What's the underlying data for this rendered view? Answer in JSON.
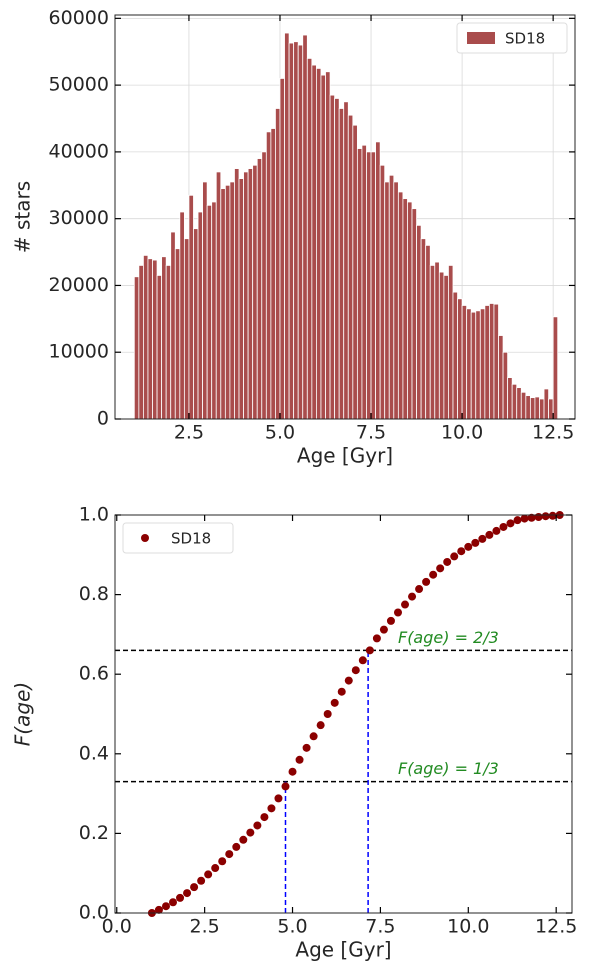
{
  "chart_data": [
    {
      "type": "histogram",
      "xlabel": "Age [Gyr]",
      "ylabel": "# stars",
      "bins": [
        1.0,
        1.125,
        1.25,
        1.375,
        1.5,
        1.625,
        1.75,
        1.875,
        2.0,
        2.125,
        2.25,
        2.375,
        2.5,
        2.625,
        2.75,
        2.875,
        3.0,
        3.125,
        3.25,
        3.375,
        3.5,
        3.625,
        3.75,
        3.875,
        4.0,
        4.125,
        4.25,
        4.375,
        4.5,
        4.625,
        4.75,
        4.875,
        5.0,
        5.125,
        5.25,
        5.375,
        5.5,
        5.625,
        5.75,
        5.875,
        6.0,
        6.125,
        6.25,
        6.375,
        6.5,
        6.625,
        6.75,
        6.875,
        7.0,
        7.125,
        7.25,
        7.375,
        7.5,
        7.625,
        7.75,
        7.875,
        8.0,
        8.125,
        8.25,
        8.375,
        8.5,
        8.625,
        8.75,
        8.875,
        9.0,
        9.125,
        9.25,
        9.375,
        9.5,
        9.625,
        9.75,
        9.875,
        10.0,
        10.125,
        10.25,
        10.375,
        10.5,
        10.625,
        10.75,
        10.875,
        11.0,
        11.125,
        11.25,
        11.375,
        11.5,
        11.625,
        11.75,
        11.875,
        12.0,
        12.125,
        12.25,
        12.375,
        12.5,
        12.625
      ],
      "series": [
        {
          "name": "SD18",
          "color": "#a94c4c",
          "values": [
            21300,
            23000,
            24500,
            24000,
            23800,
            21500,
            24300,
            23000,
            28000,
            25500,
            31000,
            27000,
            33500,
            28500,
            31000,
            35500,
            32000,
            32500,
            37000,
            34500,
            35000,
            35500,
            37500,
            36000,
            37000,
            37500,
            38000,
            39000,
            40000,
            43000,
            43500,
            46500,
            51000,
            57800,
            56300,
            56500,
            56000,
            57500,
            54000,
            53000,
            52500,
            51500,
            52000,
            48500,
            48000,
            46500,
            47500,
            45500,
            44000,
            40500,
            41000,
            40000,
            40000,
            41500,
            38000,
            35500,
            36500,
            35500,
            34000,
            33000,
            32500,
            31500,
            29000,
            27000,
            26000,
            23000,
            23500,
            22000,
            21500,
            23000,
            19000,
            18000,
            17000,
            16500,
            16000,
            16200,
            16500,
            17000,
            17300,
            17200,
            12500,
            10000,
            6200,
            5200,
            4700,
            4000,
            3500,
            3200,
            3300,
            3000,
            4500,
            3000,
            15300
          ]
        }
      ],
      "xlim": [
        0.47,
        13.1
      ],
      "ylim": [
        0,
        60500
      ],
      "xticks": [
        2.5,
        {
          "value": 5.0,
          "label": "5.0"
        },
        7.5,
        {
          "value": 10.0,
          "label": "10.0"
        },
        12.5
      ],
      "yticks": [
        0,
        10000,
        20000,
        30000,
        40000,
        50000,
        60000
      ],
      "grid": true,
      "legend": "upper right"
    },
    {
      "type": "scatter",
      "xlabel": "Age [Gyr]",
      "ylabel": "F(age)",
      "x": [
        1.0,
        1.2,
        1.4,
        1.6,
        1.8,
        2.0,
        2.2,
        2.4,
        2.6,
        2.8,
        3.0,
        3.2,
        3.4,
        3.6,
        3.8,
        4.0,
        4.2,
        4.4,
        4.6,
        4.8,
        5.0,
        5.2,
        5.4,
        5.6,
        5.8,
        6.0,
        6.2,
        6.4,
        6.6,
        6.8,
        7.0,
        7.2,
        7.4,
        7.6,
        7.8,
        8.0,
        8.2,
        8.4,
        8.6,
        8.8,
        9.0,
        9.2,
        9.4,
        9.6,
        9.8,
        10.0,
        10.2,
        10.4,
        10.6,
        10.8,
        11.0,
        11.2,
        11.4,
        11.6,
        11.8,
        12.0,
        12.2,
        12.4,
        12.6
      ],
      "series": [
        {
          "name": "SD18",
          "color": "#8b0000",
          "values": [
            0.0,
            0.008,
            0.017,
            0.027,
            0.038,
            0.05,
            0.065,
            0.081,
            0.097,
            0.113,
            0.13,
            0.148,
            0.166,
            0.184,
            0.202,
            0.22,
            0.241,
            0.263,
            0.288,
            0.318,
            0.355,
            0.385,
            0.415,
            0.444,
            0.472,
            0.5,
            0.528,
            0.556,
            0.584,
            0.61,
            0.635,
            0.66,
            0.69,
            0.712,
            0.734,
            0.755,
            0.775,
            0.795,
            0.814,
            0.832,
            0.85,
            0.866,
            0.882,
            0.896,
            0.909,
            0.92,
            0.93,
            0.94,
            0.95,
            0.96,
            0.97,
            0.979,
            0.987,
            0.991,
            0.993,
            0.995,
            0.997,
            0.998,
            1.0
          ]
        }
      ],
      "xlim": [
        -0.05,
        12.95
      ],
      "ylim": [
        0,
        1
      ],
      "xticks": [
        {
          "value": 0.0,
          "label": "0.0"
        },
        2.5,
        {
          "value": 5.0,
          "label": "5.0"
        },
        7.5,
        {
          "value": 10.0,
          "label": "10.0"
        },
        12.5
      ],
      "yticks": [
        {
          "value": 0.0,
          "label": "0.0"
        },
        0.2,
        0.4,
        0.6,
        0.8,
        {
          "value": 1.0,
          "label": "1.0"
        }
      ],
      "hlines": [
        {
          "y": 0.33,
          "color": "#000000"
        },
        {
          "y": 0.66,
          "color": "#000000"
        }
      ],
      "vlines": [
        {
          "x": 4.8,
          "ymax": 0.33,
          "color": "#0000ff"
        },
        {
          "x": 7.15,
          "ymax": 0.66,
          "color": "#0000ff"
        }
      ],
      "annotations": [
        {
          "text": "F(age) = 2/3",
          "x": 8.0,
          "y": 0.69,
          "color": "#228b22"
        },
        {
          "text": "F(age) = 1/3",
          "x": 8.0,
          "y": 0.36,
          "color": "#228b22"
        }
      ],
      "grid": false,
      "legend": "upper left"
    }
  ]
}
